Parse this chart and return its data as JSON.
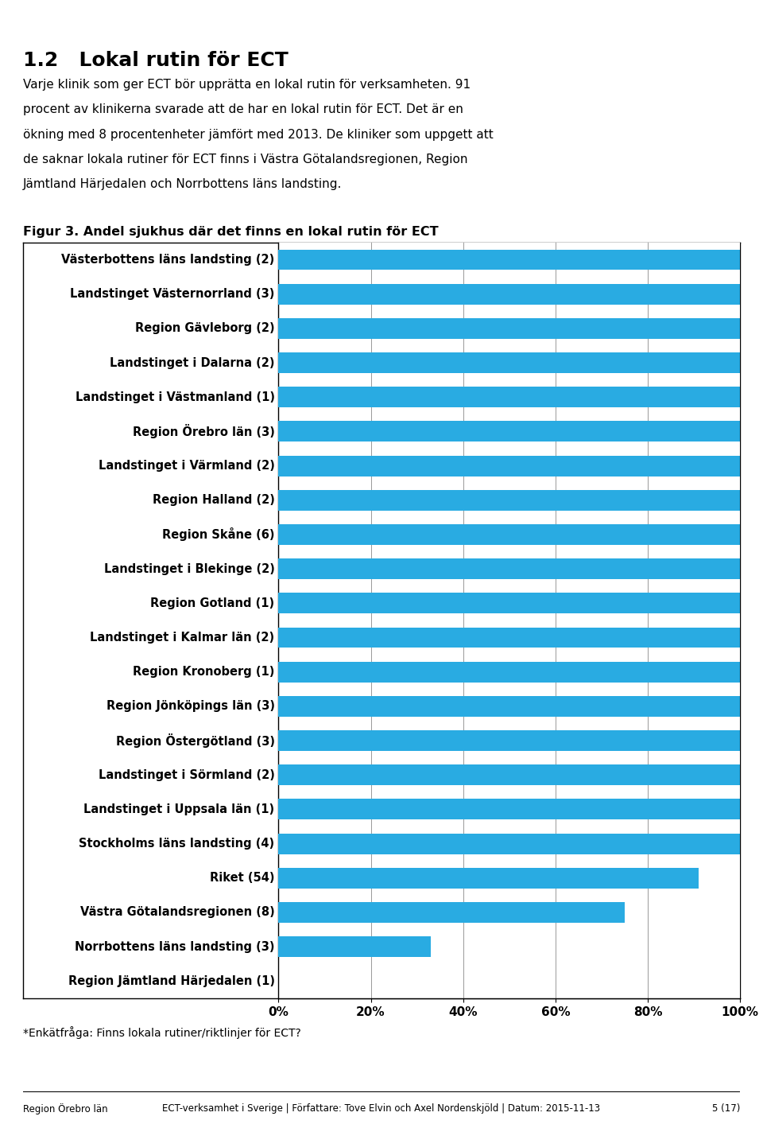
{
  "title": "1.2   Lokal rutin för ECT",
  "body_text_lines": [
    "Varje klinik som ger ECT bör upprätta en lokal rutin för verksamheten. 91",
    "procent av klinikerna svarade att de har en lokal rutin för ECT. Det är en",
    "ökning med 8 procentenheter jämfört med 2013. De kliniker som uppgett att",
    "de saknar lokala rutiner för ECT finns i Västra Götalandsregionen, Region",
    "Jämtland Härjedalen och Norrbottens läns landsting."
  ],
  "figure_title": "Figur 3. Andel sjukhus där det finns en lokal rutin för ECT",
  "footnote": "*Enkätfråga: Finns lokala rutiner/riktlinjer för ECT?",
  "footer_left": "Region Örebro län",
  "footer_center": "ECT-verksamhet i Sverige | Författare: Tove Elvin och Axel Nordenskjöld | Datum: 2015-11-13",
  "footer_right": "5 (17)",
  "categories": [
    "Västerbottens läns landsting (2)",
    "Landstinget Västernorrland (3)",
    "Region Gävleborg (2)",
    "Landstinget i Dalarna (2)",
    "Landstinget i Västmanland (1)",
    "Region Örebro län (3)",
    "Landstinget i Värmland (2)",
    "Region Halland (2)",
    "Region Skåne (6)",
    "Landstinget i Blekinge (2)",
    "Region Gotland (1)",
    "Landstinget i Kalmar län (2)",
    "Region Kronoberg (1)",
    "Region Jönköpings län (3)",
    "Region Östergötland (3)",
    "Landstinget i Sörmland (2)",
    "Landstinget i Uppsala län (1)",
    "Stockholms läns landsting (4)",
    "Riket (54)",
    "Västra Götalandsregionen (8)",
    "Norrbottens läns landsting (3)",
    "Region Jämtland Härjedalen (1)"
  ],
  "values": [
    100,
    100,
    100,
    100,
    100,
    100,
    100,
    100,
    100,
    100,
    100,
    100,
    100,
    100,
    100,
    100,
    100,
    100,
    91,
    75,
    33,
    0
  ],
  "bar_color": "#29ABE2",
  "background_color": "#FFFFFF",
  "xlim": [
    0,
    100
  ],
  "xticks": [
    0,
    20,
    40,
    60,
    80,
    100
  ],
  "xticklabels": [
    "0%",
    "20%",
    "40%",
    "60%",
    "80%",
    "100%"
  ]
}
